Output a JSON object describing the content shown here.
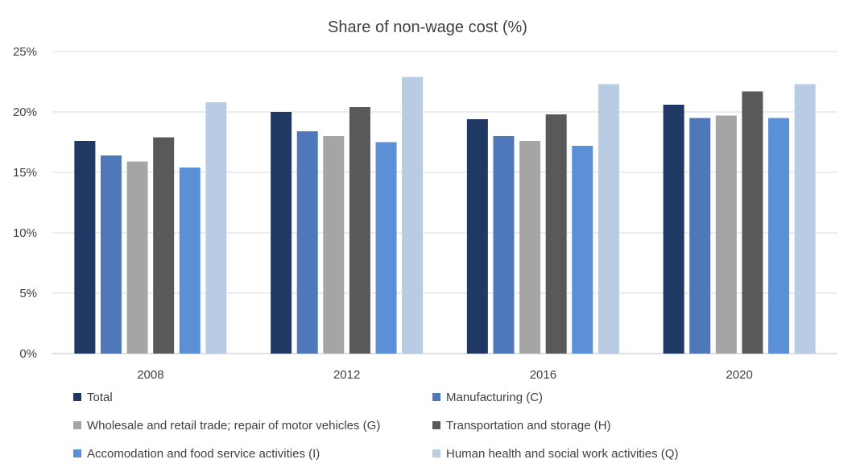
{
  "chart_data": {
    "type": "bar",
    "title": "Share of non-wage cost (%)",
    "xlabel": "",
    "ylabel": "",
    "ylim": [
      0,
      25
    ],
    "yticks": [
      "0%",
      "5%",
      "10%",
      "15%",
      "20%",
      "25%"
    ],
    "ytick_values": [
      0,
      5,
      10,
      15,
      20,
      25
    ],
    "grid": true,
    "legend_position": "bottom",
    "categories": [
      "2008",
      "2012",
      "2016",
      "2020"
    ],
    "series": [
      {
        "name": "Total",
        "color": "#1f3864",
        "values": [
          17.6,
          20.0,
          19.4,
          20.6
        ]
      },
      {
        "name": "Manufacturing (C)",
        "color": "#4e78ba",
        "values": [
          16.4,
          18.4,
          18.0,
          19.5
        ]
      },
      {
        "name": "Wholesale and retail trade; repair of motor vehicles (G)",
        "color": "#a5a5a5",
        "values": [
          15.9,
          18.0,
          17.6,
          19.7
        ]
      },
      {
        "name": "Transportation and storage (H)",
        "color": "#595959",
        "values": [
          17.9,
          20.4,
          19.8,
          21.7
        ]
      },
      {
        "name": "Accomodation and food service activities (I)",
        "color": "#5b8fd6",
        "values": [
          15.4,
          17.5,
          17.2,
          19.5
        ]
      },
      {
        "name": "Human health and social work activities (Q)",
        "color": "#b8cce4",
        "values": [
          20.8,
          22.9,
          22.3,
          22.3
        ]
      }
    ]
  }
}
